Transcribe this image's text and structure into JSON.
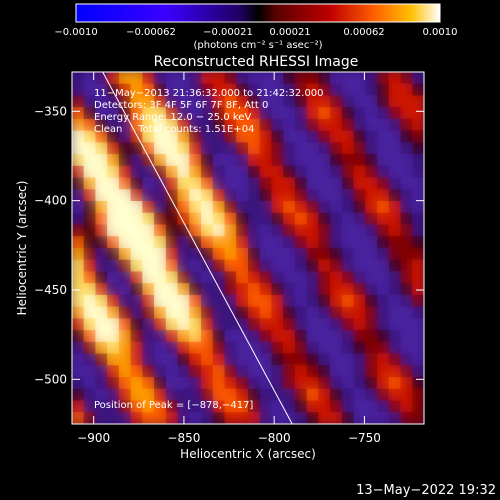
{
  "colorbar": {
    "ticks": [
      "−0.0010",
      "−0.00062",
      "−0.00021",
      "0.00021",
      "0.00062",
      "0.0010"
    ],
    "unit_label": "(photons cm⁻² s⁻¹ asec⁻²)",
    "range": [
      -0.001,
      0.001
    ]
  },
  "chart_data": {
    "type": "heatmap",
    "title": "Reconstructed RHESSI Image",
    "xlabel": "Heliocentric X (arcsec)",
    "ylabel": "Heliocentric Y (arcsec)",
    "xlim": [
      -912,
      -717
    ],
    "ylim": [
      -525,
      -328
    ],
    "x_ticks": [
      -900,
      -850,
      -800,
      -750
    ],
    "y_ticks": [
      -350,
      -400,
      -450,
      -500
    ],
    "x_tick_labels": [
      "−900",
      "−850",
      "−800",
      "−750"
    ],
    "y_tick_labels": [
      "−350",
      "−400",
      "−450",
      "−500"
    ],
    "annotations": [
      "11−May−2013 21:36:32.000 to 21:42:32.000",
      "Detectors: 3F 4F 5F 6F 7F 8F, Att 0",
      "Energy Range: 12.0 − 25.0 keV",
      "Clean     Total counts: 1.51E+04",
      "Position of Peak = [−878,−417]"
    ],
    "peak": [
      -878,
      -417
    ],
    "limb_line": [
      [
        -895,
        -328
      ],
      [
        -790,
        -525
      ]
    ]
  },
  "footer_timestamp": "13−May−2022 19:32"
}
